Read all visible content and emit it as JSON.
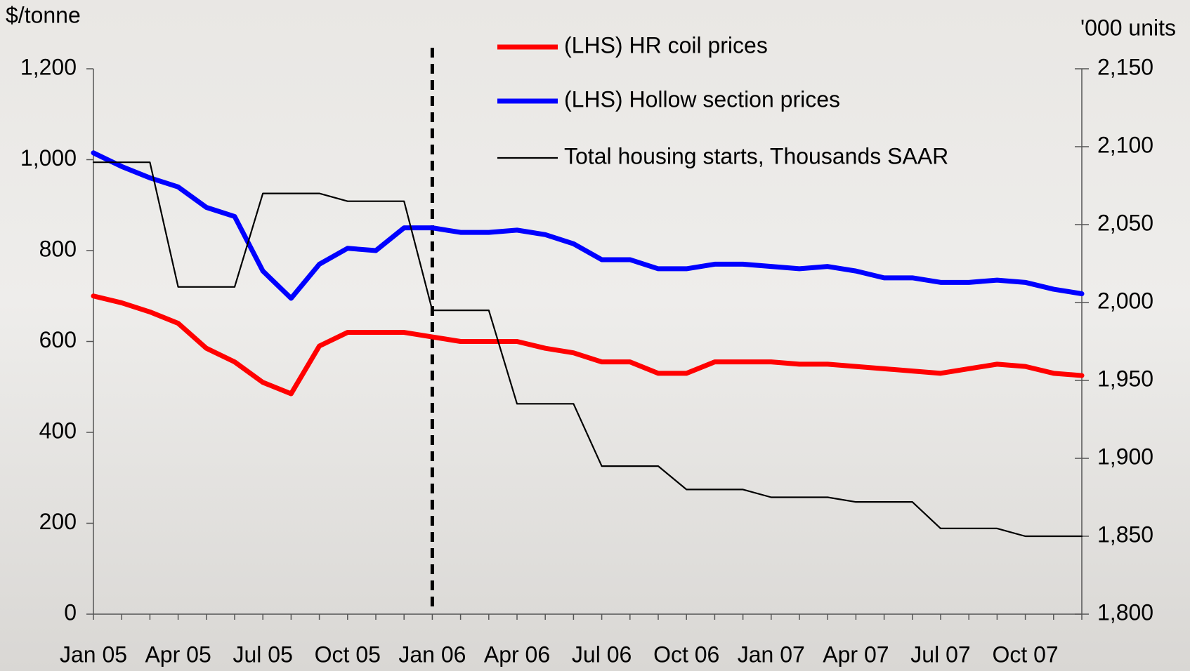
{
  "chart_data": {
    "type": "line",
    "y_label": "$/tonne",
    "y2_label": "'000 units",
    "categories": [
      "Jan 05",
      null,
      null,
      "Apr 05",
      null,
      null,
      "Jul 05",
      null,
      null,
      "Oct 05",
      null,
      null,
      "Jan 06",
      null,
      null,
      "Apr 06",
      null,
      null,
      "Jul 06",
      null,
      null,
      "Oct 06",
      null,
      null,
      "Jan 07",
      null,
      null,
      "Apr 07",
      null,
      null,
      "Jul 07",
      null,
      null,
      "Oct 07",
      null,
      null
    ],
    "series": [
      {
        "name": "(LHS) HR coil prices",
        "color": "#ff0000",
        "values": [
          700,
          685,
          665,
          640,
          585,
          555,
          510,
          485,
          590,
          620,
          620,
          620,
          610,
          600,
          600,
          600,
          585,
          575,
          555,
          555,
          530,
          530,
          555,
          555,
          555,
          550,
          550,
          545,
          540,
          535,
          530,
          540,
          550,
          545,
          530,
          525
        ]
      },
      {
        "name": "(LHS) Hollow section prices",
        "color": "#0000ff",
        "values": [
          1015,
          985,
          960,
          940,
          895,
          875,
          755,
          695,
          770,
          805,
          800,
          850,
          850,
          840,
          840,
          845,
          835,
          815,
          780,
          780,
          760,
          760,
          770,
          770,
          765,
          760,
          765,
          755,
          740,
          740,
          730,
          730,
          735,
          730,
          715,
          705
        ]
      },
      {
        "name": "Total housing starts, Thousands SAAR",
        "color": "#000000",
        "axis": "y2",
        "values": [
          2090,
          2090,
          2090,
          2010,
          2010,
          2010,
          2070,
          2070,
          2070,
          2065,
          2065,
          2065,
          1995,
          1995,
          1995,
          1935,
          1935,
          1935,
          1895,
          1895,
          1895,
          1880,
          1880,
          1880,
          1875,
          1875,
          1875,
          1872,
          1872,
          1872,
          1855,
          1855,
          1855,
          1850,
          1850,
          1850
        ]
      }
    ],
    "ylim": [
      0,
      1200
    ],
    "yticks": [
      0,
      200,
      400,
      600,
      800,
      {
        "value": 1000,
        "label": "1,000"
      },
      {
        "value": 1200,
        "label": "1,200"
      }
    ],
    "y2lim": [
      1800,
      2150
    ],
    "y2ticks": [
      {
        "value": 1800,
        "label": "1,800"
      },
      {
        "value": 1850,
        "label": "1,850"
      },
      {
        "value": 1900,
        "label": "1,900"
      },
      {
        "value": 1950,
        "label": "1,950"
      },
      {
        "value": 2000,
        "label": "2,000"
      },
      {
        "value": 2050,
        "label": "2,050"
      },
      {
        "value": 2100,
        "label": "2,100"
      },
      {
        "value": 2150,
        "label": "2,150"
      }
    ],
    "vline_at": 12,
    "grid": false,
    "legend": "top"
  }
}
